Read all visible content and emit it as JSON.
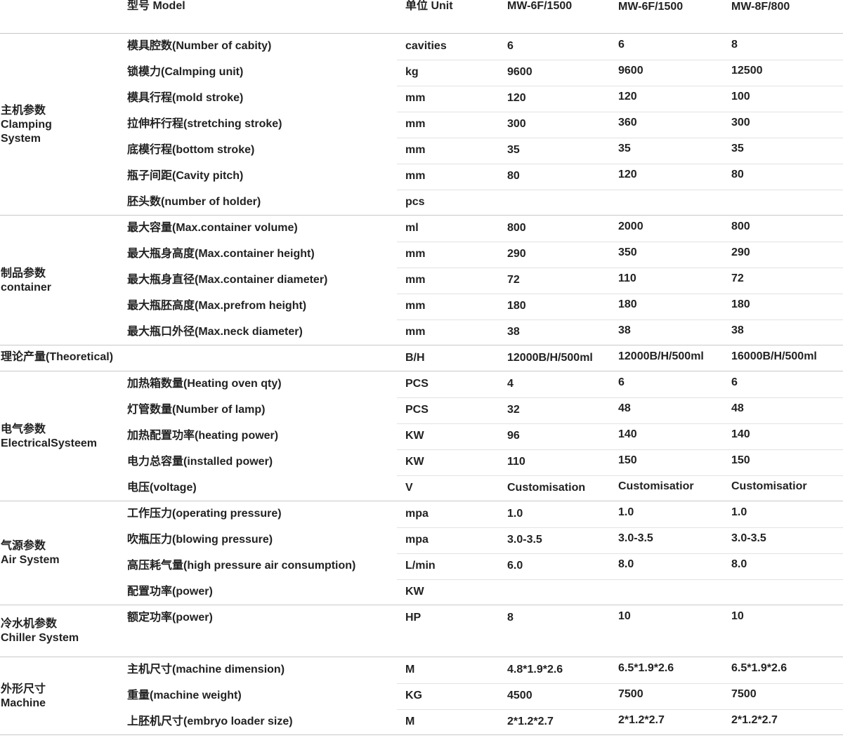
{
  "header": {
    "model": "型号 Model",
    "unit": "单位 Unit",
    "models": [
      "MW-6F/1500",
      "MW-6F/1500",
      "MW-8F/800"
    ]
  },
  "groups": [
    {
      "label": [
        "主机参数",
        "Clamping",
        "System"
      ],
      "rows": [
        {
          "param": "模具腔数(Number of cabity)",
          "unit": "cavities",
          "values": [
            "6",
            "6",
            "8"
          ]
        },
        {
          "param": "锁模力(Calmping unit)",
          "unit": "kg",
          "values": [
            "9600",
            "9600",
            "12500"
          ]
        },
        {
          "param": "模具行程(mold stroke)",
          "unit": "mm",
          "values": [
            "120",
            "120",
            "100"
          ]
        },
        {
          "param": "拉伸杆行程(stretching stroke)",
          "unit": "mm",
          "values": [
            "300",
            "360",
            "300"
          ]
        },
        {
          "param": "底模行程(bottom stroke)",
          "unit": "mm",
          "values": [
            "35",
            "35",
            "35"
          ]
        },
        {
          "param": "瓶子间距(Cavity pitch)",
          "unit": "mm",
          "values": [
            "80",
            "120",
            "80"
          ]
        },
        {
          "param": "胚头数(number of holder)",
          "unit": "pcs",
          "values": []
        }
      ]
    },
    {
      "label": [
        "制品参数",
        "container"
      ],
      "rows": [
        {
          "param": "最大容量(Max.container volume)",
          "unit": "ml",
          "values": [
            "800",
            "2000",
            "800"
          ]
        },
        {
          "param": "最大瓶身高度(Max.container height)",
          "unit": "mm",
          "values": [
            "290",
            "350",
            "290"
          ]
        },
        {
          "param": "最大瓶身直径(Max.container diameter)",
          "unit": "mm",
          "values": [
            "72",
            "110",
            "72"
          ]
        },
        {
          "param": "最大瓶胚高度(Max.prefrom height)",
          "unit": "mm",
          "values": [
            "180",
            "180",
            "180"
          ]
        },
        {
          "param": "最大瓶口外径(Max.neck diameter)",
          "unit": "mm",
          "values": [
            "38",
            "38",
            "38"
          ]
        }
      ]
    },
    {
      "label": [
        "理论产量(Theoretical)"
      ],
      "rows": [
        {
          "unit": "B/H",
          "values": [
            "12000B/H/500ml",
            "12000B/H/500ml",
            "16000B/H/500ml"
          ]
        }
      ]
    },
    {
      "label": [
        "电气参数",
        "ElectricalSysteem"
      ],
      "rows": [
        {
          "param": "加热箱数量(Heating oven qty)",
          "unit": "PCS",
          "values": [
            "4",
            "6",
            "6"
          ]
        },
        {
          "param": "灯管数量(Number of lamp)",
          "unit": "PCS",
          "values": [
            "32",
            "48",
            "48"
          ]
        },
        {
          "param": "加热配置功率(heating power)",
          "unit": "KW",
          "values": [
            "96",
            "140",
            "140"
          ]
        },
        {
          "param": "电力总容量(installed power)",
          "unit": "KW",
          "values": [
            "110",
            "150",
            "150"
          ]
        },
        {
          "param": "电压(voltage)",
          "unit": "V",
          "values": [
            "Customisation",
            "Customisatior",
            "Customisatior"
          ]
        }
      ]
    },
    {
      "label": [
        "气源参数",
        "Air System"
      ],
      "rows": [
        {
          "param": "工作压力(operating pressure)",
          "unit": "mpa",
          "values": [
            "1.0",
            "1.0",
            "1.0"
          ]
        },
        {
          "param": "吹瓶压力(blowing pressure)",
          "unit": "mpa",
          "values": [
            "3.0-3.5",
            "3.0-3.5",
            "3.0-3.5"
          ]
        },
        {
          "param": "高压耗气量(high pressure air consumption)",
          "unit": "L/min",
          "values": [
            "6.0",
            "8.0",
            "8.0"
          ]
        },
        {
          "param": "配置功率(power)",
          "unit": "KW",
          "values": []
        }
      ]
    },
    {
      "label": [
        "冷水机参数",
        "Chiller System"
      ],
      "rows": [
        {
          "param": "额定功率(power)",
          "unit": "HP",
          "values": [
            "8",
            "10",
            "10"
          ]
        }
      ]
    },
    {
      "label": [
        "外形尺寸",
        "Machine"
      ],
      "rows": [
        {
          "param": "主机尺寸(machine dimension)",
          "unit": "M",
          "values": [
            "4.8*1.9*2.6",
            "6.5*1.9*2.6",
            "6.5*1.9*2.6"
          ]
        },
        {
          "param": "重量(machine weight)",
          "unit": "KG",
          "values": [
            "4500",
            "7500",
            "7500"
          ]
        },
        {
          "param": "上胚机尺寸(embryo loader size)",
          "unit": "M",
          "values": [
            "2*1.2*2.7",
            "2*1.2*2.7",
            "2*1.2*2.7"
          ]
        }
      ]
    }
  ]
}
